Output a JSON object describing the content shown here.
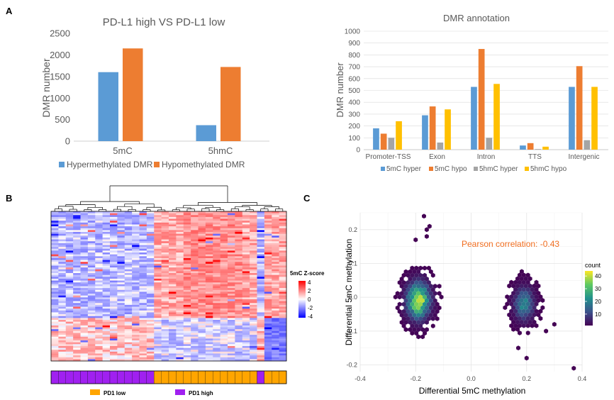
{
  "panels": {
    "a": "A",
    "b": "B",
    "c": "C"
  },
  "chart_data": [
    {
      "id": "A1",
      "type": "bar",
      "title": "PD-L1 high VS PD-L1 low",
      "ylabel": "DMR number",
      "xlabel": "",
      "categories": [
        "5mC",
        "5hmC"
      ],
      "ylim": [
        0,
        2500
      ],
      "yticks": [
        0,
        500,
        1000,
        1500,
        2000,
        2500
      ],
      "series": [
        {
          "name": "Hypermethylated DMR",
          "color": "#5b9bd5",
          "values": [
            1600,
            370
          ]
        },
        {
          "name": "Hypomethylated DMR",
          "color": "#ed7d31",
          "values": [
            2150,
            1720
          ]
        }
      ],
      "legend": "bottom"
    },
    {
      "id": "A2",
      "type": "bar",
      "title": "DMR annotation",
      "ylabel": "DMR number",
      "xlabel": "",
      "categories": [
        "Promoter-TSS",
        "Exon",
        "Intron",
        "TTS",
        "Intergenic"
      ],
      "ylim": [
        0,
        1000
      ],
      "yticks": [
        0,
        100,
        200,
        300,
        400,
        500,
        600,
        700,
        800,
        900,
        1000
      ],
      "series": [
        {
          "name": "5mC hyper",
          "color": "#5b9bd5",
          "values": [
            180,
            290,
            530,
            35,
            530
          ]
        },
        {
          "name": "5mC hypo",
          "color": "#ed7d31",
          "values": [
            135,
            365,
            850,
            55,
            705
          ]
        },
        {
          "name": "5hmC hyper",
          "color": "#a5a5a5",
          "values": [
            100,
            60,
            100,
            5,
            80
          ]
        },
        {
          "name": "5hmC hypo",
          "color": "#ffc000",
          "values": [
            240,
            340,
            555,
            25,
            530
          ]
        }
      ],
      "legend": "bottom"
    },
    {
      "id": "B",
      "type": "heatmap",
      "colorbar_title": "5mC Z-score",
      "colorbar_ticks": [
        4,
        2,
        0,
        -2,
        -4
      ],
      "colors": {
        "low": "#0000ff",
        "mid": "#ffffff",
        "high": "#ff0000"
      },
      "rows": 80,
      "cols": 32,
      "annotation": {
        "groups": [
          {
            "name": "PD1 low",
            "color": "#ffa500"
          },
          {
            "name": "PD1 high",
            "color": "#a020f0"
          }
        ],
        "sequence": [
          "PD1 high",
          "PD1 high",
          "PD1 high",
          "PD1 high",
          "PD1 high",
          "PD1 high",
          "PD1 high",
          "PD1 high",
          "PD1 high",
          "PD1 high",
          "PD1 high",
          "PD1 high",
          "PD1 high",
          "PD1 high",
          "PD1 low",
          "PD1 low",
          "PD1 low",
          "PD1 low",
          "PD1 low",
          "PD1 low",
          "PD1 low",
          "PD1 low",
          "PD1 low",
          "PD1 low",
          "PD1 low",
          "PD1 low",
          "PD1 low",
          "PD1 low",
          "PD1 high",
          "PD1 low",
          "PD1 low",
          "PD1 low"
        ]
      }
    },
    {
      "id": "C",
      "type": "scatter",
      "subtype": "hexbin",
      "xlabel": "Differential 5mC methylation",
      "ylabel": "Differential 5mC methylation",
      "xlim": [
        -0.4,
        0.4
      ],
      "ylim": [
        -0.22,
        0.25
      ],
      "xticks": [
        -0.4,
        -0.2,
        0.0,
        0.2,
        0.4
      ],
      "yticks": [
        -0.2,
        -0.1,
        0.0,
        0.1,
        0.2
      ],
      "annotation": "Pearson correlation: -0.43",
      "annotation_color": "#f06d1f",
      "legend_title": "count",
      "legend_ticks": [
        40,
        30,
        20,
        10
      ],
      "count_range": [
        1,
        44
      ],
      "clusters": [
        {
          "cx": -0.19,
          "cy": -0.01,
          "sx": 0.035,
          "sy": 0.045,
          "peak": 44
        },
        {
          "cx": 0.19,
          "cy": -0.02,
          "sx": 0.03,
          "sy": 0.04,
          "peak": 22
        }
      ],
      "outliers": [
        [
          -0.17,
          0.24
        ],
        [
          -0.16,
          0.2
        ],
        [
          -0.15,
          0.21
        ],
        [
          -0.16,
          0.18
        ],
        [
          -0.2,
          0.17
        ],
        [
          0.37,
          -0.21
        ],
        [
          0.3,
          -0.08
        ],
        [
          0.27,
          -0.1
        ],
        [
          0.2,
          -0.18
        ],
        [
          0.17,
          -0.15
        ]
      ]
    }
  ]
}
